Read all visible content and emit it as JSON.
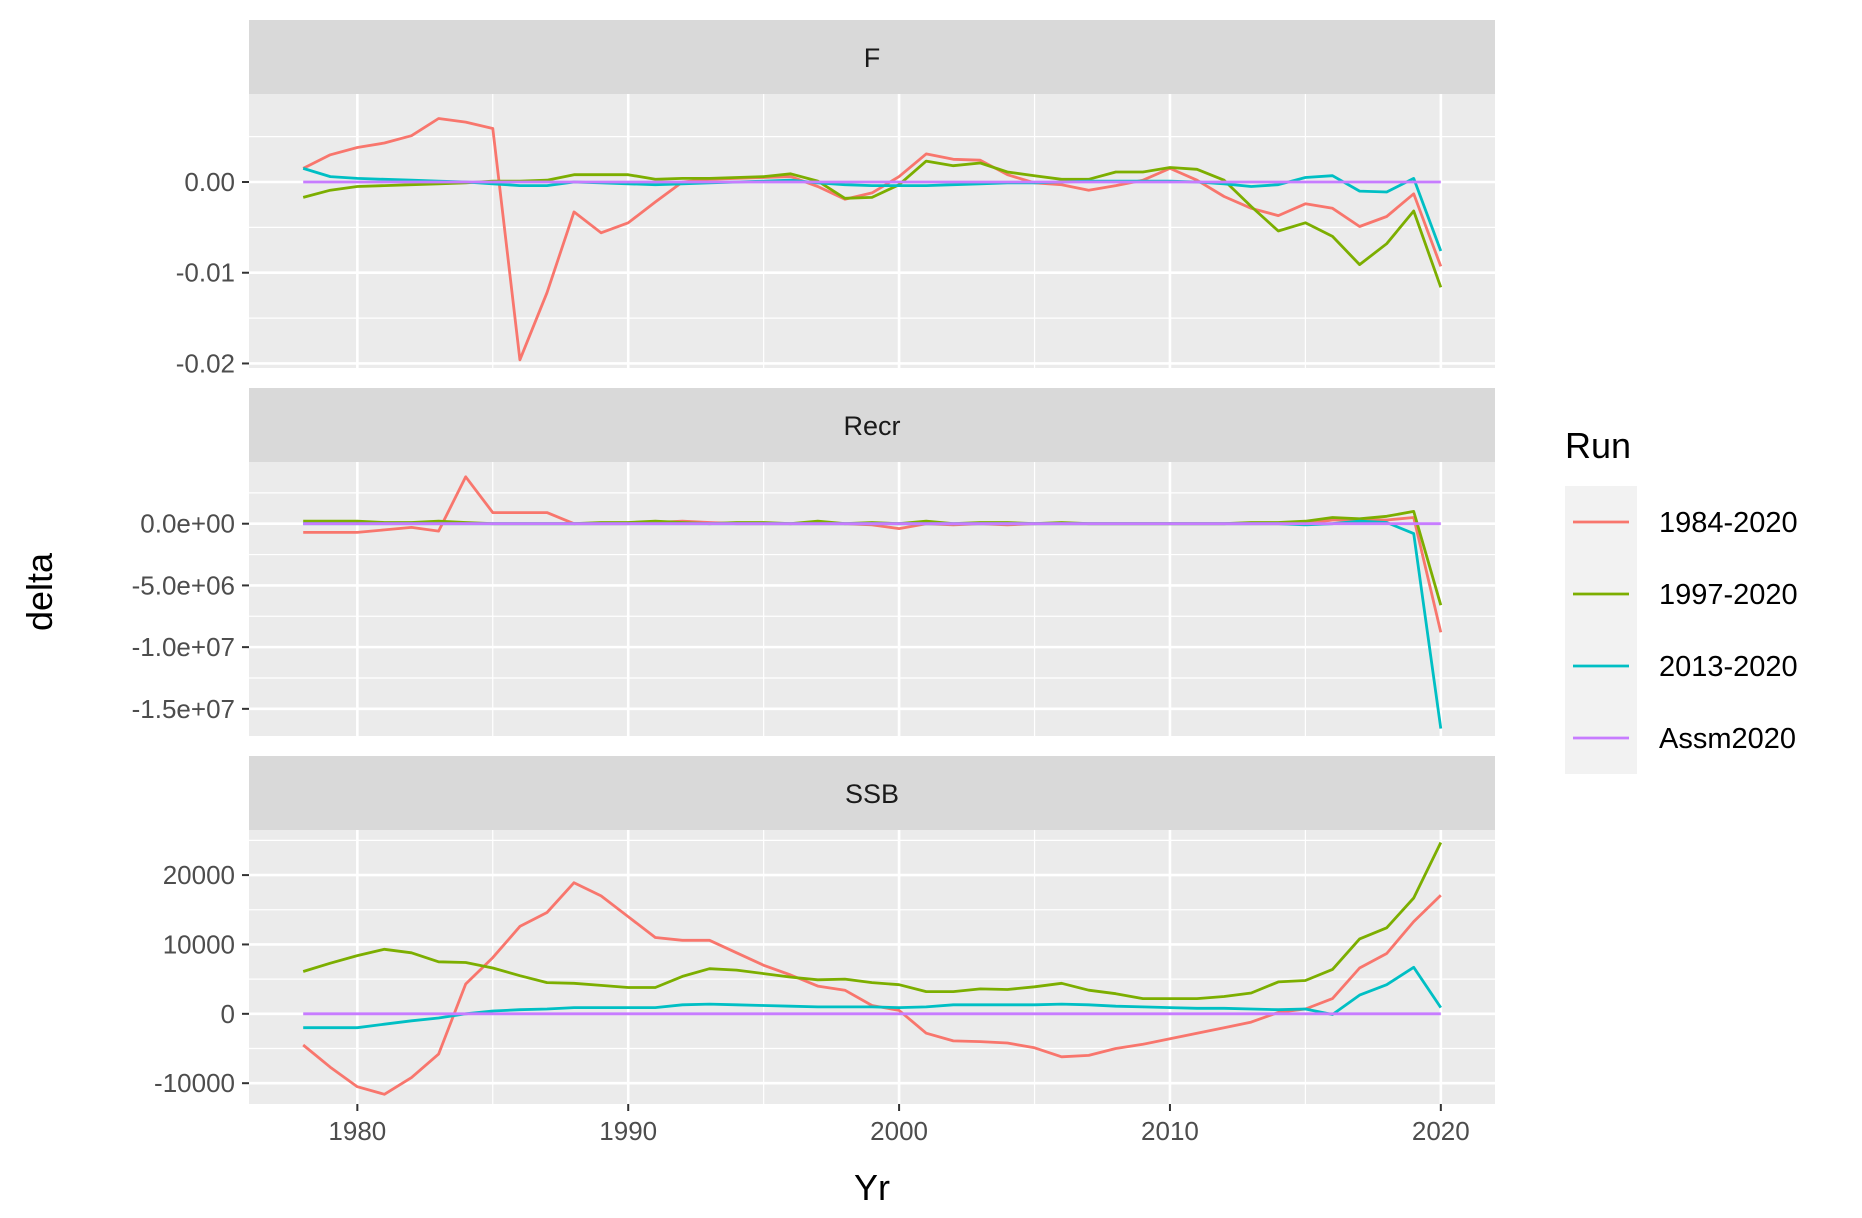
{
  "chart_data": {
    "type": "line",
    "xlabel": "Yr",
    "ylabel": "delta",
    "xlim": [
      1976,
      2022
    ],
    "x_ticks": [
      1980,
      1990,
      2000,
      2010,
      2020
    ],
    "x_tick_labels": [
      "1980",
      "1990",
      "2000",
      "2010",
      "2020"
    ],
    "grid": true,
    "legend": {
      "title": "Run",
      "position": "right"
    },
    "series_styles": [
      {
        "name": "1984-2020",
        "color": "#F8766D"
      },
      {
        "name": "1997-2020",
        "color": "#7CAE00"
      },
      {
        "name": "2013-2020",
        "color": "#00BFC4"
      },
      {
        "name": "Assm2020",
        "color": "#C77CFF"
      }
    ],
    "panels": [
      {
        "label": "F",
        "ylim": [
          -0.0205,
          0.0097
        ],
        "y_ticks": [
          -0.02,
          -0.01,
          0.0
        ],
        "y_tick_labels": [
          "-0.02",
          "-0.01",
          "0.00"
        ],
        "series": [
          {
            "name": "1984-2020",
            "x": [
              1978,
              1979,
              1980,
              1981,
              1982,
              1983,
              1984,
              1985,
              1986,
              1987,
              1988,
              1989,
              1990,
              1991,
              1992,
              1993,
              1994,
              1995,
              1996,
              1997,
              1998,
              1999,
              2000,
              2001,
              2002,
              2003,
              2004,
              2005,
              2006,
              2007,
              2008,
              2009,
              2010,
              2011,
              2012,
              2013,
              2014,
              2015,
              2016,
              2017,
              2018,
              2019,
              2020
            ],
            "y": [
              0.0015,
              0.003,
              0.0038,
              0.0043,
              0.0051,
              0.007,
              0.0066,
              0.0059,
              -0.0196,
              -0.0122,
              -0.0033,
              -0.0056,
              -0.0045,
              -0.0022,
              0.0,
              0.0003,
              0.0004,
              0.0005,
              0.0006,
              -0.0005,
              -0.0019,
              -0.0012,
              0.0006,
              0.0031,
              0.0025,
              0.0024,
              0.0008,
              -0.0001,
              -0.0003,
              -0.0009,
              -0.0004,
              0.0002,
              0.0015,
              0.0002,
              -0.0016,
              -0.0029,
              -0.0037,
              -0.0024,
              -0.0029,
              -0.0049,
              -0.0038,
              -0.0013,
              -0.0093
            ]
          },
          {
            "name": "1997-2020",
            "x": [
              1978,
              1979,
              1980,
              1981,
              1982,
              1983,
              1984,
              1985,
              1986,
              1987,
              1988,
              1989,
              1990,
              1991,
              1992,
              1993,
              1994,
              1995,
              1996,
              1997,
              1998,
              1999,
              2000,
              2001,
              2002,
              2003,
              2004,
              2005,
              2006,
              2007,
              2008,
              2009,
              2010,
              2011,
              2012,
              2013,
              2014,
              2015,
              2016,
              2017,
              2018,
              2019,
              2020
            ],
            "y": [
              -0.0017,
              -0.0009,
              -0.0005,
              -0.0004,
              -0.0003,
              -0.0002,
              -0.0001,
              0.0001,
              0.0001,
              0.0002,
              0.0008,
              0.0008,
              0.0008,
              0.0003,
              0.0004,
              0.0004,
              0.0005,
              0.0006,
              0.0009,
              0.0001,
              -0.0018,
              -0.0017,
              -0.0003,
              0.0023,
              0.0018,
              0.0021,
              0.0011,
              0.0007,
              0.0003,
              0.0003,
              0.0011,
              0.0011,
              0.0016,
              0.0014,
              0.0002,
              -0.0027,
              -0.0054,
              -0.0045,
              -0.006,
              -0.0091,
              -0.0068,
              -0.0032,
              -0.0116
            ]
          },
          {
            "name": "2013-2020",
            "x": [
              1978,
              1979,
              1980,
              1981,
              1982,
              1983,
              1984,
              1985,
              1986,
              1987,
              1988,
              1989,
              1990,
              1991,
              1992,
              1993,
              1994,
              1995,
              1996,
              1997,
              1998,
              1999,
              2000,
              2001,
              2002,
              2003,
              2004,
              2005,
              2006,
              2007,
              2008,
              2009,
              2010,
              2011,
              2012,
              2013,
              2014,
              2015,
              2016,
              2017,
              2018,
              2019,
              2020
            ],
            "y": [
              0.0015,
              0.0006,
              0.0004,
              0.0003,
              0.0002,
              0.0001,
              0.0,
              -0.0002,
              -0.0004,
              -0.0004,
              0.0,
              -0.0001,
              -0.0002,
              -0.0003,
              -0.0002,
              -0.0001,
              0.0,
              0.0001,
              0.0002,
              -0.0001,
              -0.0003,
              -0.0004,
              -0.0004,
              -0.0004,
              -0.0003,
              -0.0002,
              -0.0001,
              -0.0001,
              0.0,
              0.0001,
              0.0001,
              0.0001,
              0.0001,
              0.0,
              -0.0002,
              -0.0005,
              -0.0003,
              0.0005,
              0.0007,
              -0.001,
              -0.0011,
              0.0004,
              -0.0076
            ]
          },
          {
            "name": "Assm2020",
            "x": [
              1978,
              2020
            ],
            "y": [
              0.0,
              0.0
            ]
          }
        ]
      },
      {
        "label": "Recr",
        "ylim": [
          -17200000,
          5000000
        ],
        "y_ticks": [
          -15000000,
          -10000000,
          -5000000,
          0
        ],
        "y_tick_labels": [
          "-1.5e+07",
          "-1.0e+07",
          "-5.0e+06",
          "0.0e+00"
        ],
        "series": [
          {
            "name": "1984-2020",
            "x": [
              1978,
              1979,
              1980,
              1981,
              1982,
              1983,
              1984,
              1985,
              1986,
              1987,
              1988,
              1989,
              1990,
              1991,
              1992,
              1993,
              1994,
              1995,
              1996,
              1997,
              1998,
              1999,
              2000,
              2001,
              2002,
              2003,
              2004,
              2005,
              2006,
              2007,
              2008,
              2009,
              2010,
              2011,
              2012,
              2013,
              2014,
              2015,
              2016,
              2017,
              2018,
              2019,
              2020
            ],
            "y": [
              -700000,
              -700000,
              -700000,
              -500000,
              -300000,
              -600000,
              3800000,
              900000,
              900000,
              900000,
              0,
              0,
              0,
              100000,
              200000,
              100000,
              0,
              0,
              0,
              0,
              0,
              -100000,
              -400000,
              0,
              -100000,
              0,
              -100000,
              0,
              0,
              0,
              0,
              0,
              0,
              0,
              0,
              0,
              0,
              0,
              300000,
              300000,
              300000,
              500000,
              -8800000
            ]
          },
          {
            "name": "1997-2020",
            "x": [
              1978,
              1979,
              1980,
              1981,
              1982,
              1983,
              1984,
              1985,
              1986,
              1987,
              1988,
              1989,
              1990,
              1991,
              1992,
              1993,
              1994,
              1995,
              1996,
              1997,
              1998,
              1999,
              2000,
              2001,
              2002,
              2003,
              2004,
              2005,
              2006,
              2007,
              2008,
              2009,
              2010,
              2011,
              2012,
              2013,
              2014,
              2015,
              2016,
              2017,
              2018,
              2019,
              2020
            ],
            "y": [
              200000,
              200000,
              200000,
              100000,
              100000,
              200000,
              100000,
              0,
              0,
              0,
              0,
              100000,
              100000,
              200000,
              100000,
              0,
              100000,
              100000,
              0,
              200000,
              0,
              100000,
              0,
              200000,
              0,
              100000,
              100000,
              0,
              100000,
              0,
              0,
              0,
              0,
              0,
              0,
              100000,
              100000,
              200000,
              500000,
              400000,
              600000,
              1000000,
              -6600000
            ]
          },
          {
            "name": "2013-2020",
            "x": [
              1978,
              1990,
              2000,
              2010,
              2013,
              2014,
              2015,
              2016,
              2017,
              2018,
              2019,
              2020
            ],
            "y": [
              0,
              0,
              0,
              0,
              0,
              0,
              -100000,
              0,
              200000,
              100000,
              -800000,
              -16600000
            ]
          },
          {
            "name": "Assm2020",
            "x": [
              1978,
              2020
            ],
            "y": [
              0,
              0
            ]
          }
        ]
      },
      {
        "label": "SSB",
        "ylim": [
          -13000,
          26500
        ],
        "y_ticks": [
          -10000,
          0,
          10000,
          20000
        ],
        "y_tick_labels": [
          "-10000",
          "0",
          "10000",
          "20000"
        ],
        "series": [
          {
            "name": "1984-2020",
            "x": [
              1978,
              1979,
              1980,
              1981,
              1982,
              1983,
              1984,
              1985,
              1986,
              1987,
              1988,
              1989,
              1990,
              1991,
              1992,
              1993,
              1994,
              1995,
              1996,
              1997,
              1998,
              1999,
              2000,
              2001,
              2002,
              2003,
              2004,
              2005,
              2006,
              2007,
              2008,
              2009,
              2010,
              2011,
              2012,
              2013,
              2014,
              2015,
              2016,
              2017,
              2018,
              2019,
              2020
            ],
            "y": [
              -4500,
              -7700,
              -10500,
              -11600,
              -9200,
              -5800,
              4300,
              8100,
              12600,
              14600,
              18900,
              17000,
              14000,
              11000,
              10600,
              10600,
              8800,
              7000,
              5600,
              4000,
              3400,
              1200,
              500,
              -2800,
              -3900,
              -4000,
              -4200,
              -4900,
              -6200,
              -6000,
              -5000,
              -4400,
              -3600,
              -2800,
              -2000,
              -1200,
              200,
              700,
              2200,
              6600,
              8700,
              13300,
              17100
            ]
          },
          {
            "name": "1997-2020",
            "x": [
              1978,
              1979,
              1980,
              1981,
              1982,
              1983,
              1984,
              1985,
              1986,
              1987,
              1988,
              1989,
              1990,
              1991,
              1992,
              1993,
              1994,
              1995,
              1996,
              1997,
              1998,
              1999,
              2000,
              2001,
              2002,
              2003,
              2004,
              2005,
              2006,
              2007,
              2008,
              2009,
              2010,
              2011,
              2012,
              2013,
              2014,
              2015,
              2016,
              2017,
              2018,
              2019,
              2020
            ],
            "y": [
              6100,
              7300,
              8400,
              9300,
              8800,
              7500,
              7400,
              6600,
              5500,
              4500,
              4400,
              4100,
              3800,
              3800,
              5400,
              6500,
              6300,
              5800,
              5300,
              4900,
              5000,
              4500,
              4200,
              3200,
              3200,
              3600,
              3500,
              3900,
              4400,
              3400,
              2900,
              2200,
              2200,
              2200,
              2500,
              3000,
              4600,
              4800,
              6400,
              10800,
              12400,
              16700,
              24700
            ]
          },
          {
            "name": "2013-2020",
            "x": [
              1978,
              1979,
              1980,
              1981,
              1982,
              1983,
              1984,
              1985,
              1986,
              1987,
              1988,
              1989,
              1990,
              1991,
              1992,
              1993,
              1994,
              1995,
              1996,
              1997,
              1998,
              1999,
              2000,
              2001,
              2002,
              2003,
              2004,
              2005,
              2006,
              2007,
              2008,
              2009,
              2010,
              2011,
              2012,
              2013,
              2014,
              2015,
              2016,
              2017,
              2018,
              2019,
              2020
            ],
            "y": [
              -2000,
              -2000,
              -2000,
              -1500,
              -1000,
              -600,
              0,
              400,
              600,
              700,
              900,
              900,
              900,
              900,
              1300,
              1400,
              1300,
              1200,
              1100,
              1000,
              1000,
              1000,
              900,
              1000,
              1300,
              1300,
              1300,
              1300,
              1400,
              1300,
              1100,
              1000,
              900,
              800,
              800,
              700,
              600,
              700,
              -100,
              2700,
              4200,
              6700,
              900
            ]
          },
          {
            "name": "Assm2020",
            "x": [
              1978,
              2020
            ],
            "y": [
              0,
              0
            ]
          }
        ]
      }
    ]
  }
}
